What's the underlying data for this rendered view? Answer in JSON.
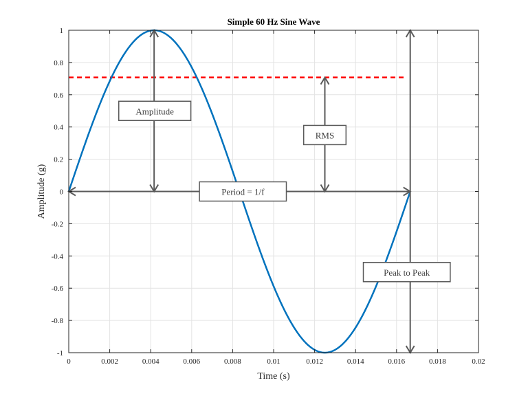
{
  "chart_data": {
    "type": "line",
    "title": "Simple 60 Hz Sine Wave",
    "xlabel": "Time (s)",
    "ylabel": "Amplitude (g)",
    "xlim": [
      0,
      0.02
    ],
    "ylim": [
      -1,
      1
    ],
    "grid": true,
    "x_ticks": [
      "0",
      "0.002",
      "0.004",
      "0.006",
      "0.008",
      "0.01",
      "0.012",
      "0.014",
      "0.016",
      "0.018",
      "0.02"
    ],
    "y_ticks": [
      "1",
      "0.8",
      "0.6",
      "0.4",
      "0.2",
      "0",
      "-0.2",
      "-0.4",
      "-0.6",
      "-0.8",
      "-1"
    ],
    "series": [
      {
        "frequency_hz": 60,
        "amplitude": 1,
        "x_start": 0,
        "x_end": 0.016667,
        "color": "#0072BD"
      }
    ],
    "rms_line": {
      "y": 0.7071,
      "x_start": 0,
      "x_end": 0.0164,
      "color": "#FF0000",
      "style": "dashed"
    },
    "annotations": [
      {
        "label": "Amplitude",
        "arrow": "vertical",
        "x": 0.004167,
        "y_from": 0,
        "y_to": 1,
        "label_x": 0.0042,
        "label_y": 0.5
      },
      {
        "label": "RMS",
        "arrow": "vertical",
        "x": 0.0125,
        "y_from": 0,
        "y_to": 0.7071,
        "label_x": 0.0125,
        "label_y": 0.35
      },
      {
        "label": "Period = 1/f",
        "arrow": "horizontal",
        "y": 0,
        "x_from": 0,
        "x_to": 0.016667,
        "label_x": 0.0085,
        "label_y": 0
      },
      {
        "label": "Peak to Peak",
        "arrow": "vertical",
        "x": 0.016667,
        "y_from": -1,
        "y_to": 1,
        "label_x": 0.0165,
        "label_y": -0.5
      }
    ]
  }
}
